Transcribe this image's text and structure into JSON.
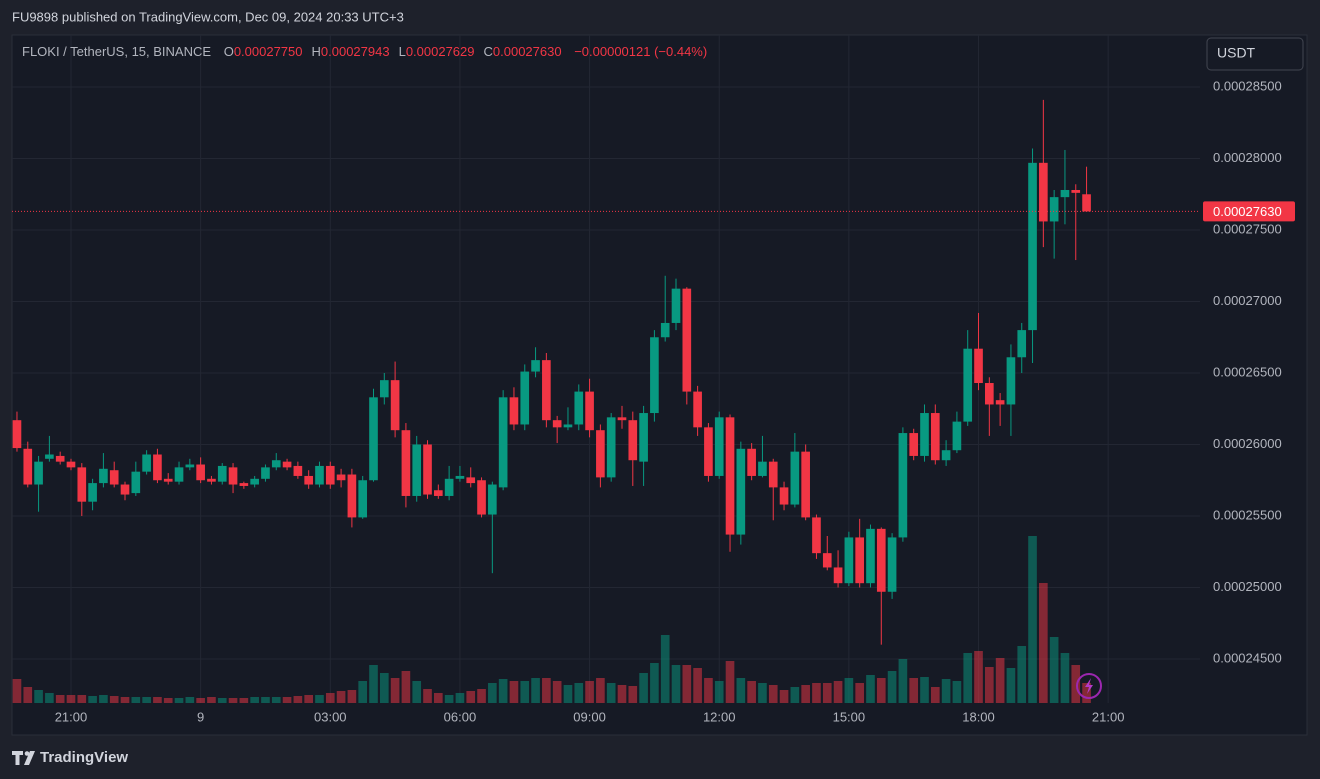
{
  "header": {
    "publisher": "FU9898 published on TradingView.com, Dec 09, 2024 20:33 UTC+3",
    "brand": "TradingView"
  },
  "chart_data": {
    "type": "candlestick",
    "symbol": "FLOKI / TetherUS, 15, BINANCE",
    "ohlc_legend": [
      {
        "label": "O",
        "value": "0.00027750"
      },
      {
        "label": "H",
        "value": "0.00027943"
      },
      {
        "label": "L",
        "value": "0.00027629"
      },
      {
        "label": "C",
        "value": "0.00027630"
      }
    ],
    "change": "−0.00000121 (−0.44%)",
    "currency": "USDT",
    "up_color": "#089981",
    "down_color": "#f23645",
    "grid": true,
    "last_price": {
      "value": 0.0002763,
      "label": "0.00027630"
    },
    "open": [
      0.0002617,
      0.0002597,
      0.0002572,
      0.000259,
      0.0002592,
      0.0002588,
      0.0002584,
      0.000256,
      0.0002573,
      0.0002582,
      0.0002572,
      0.0002566,
      0.0002581,
      0.0002593,
      0.0002576,
      0.0002574,
      0.0002584,
      0.0002586,
      0.0002576,
      0.0002574,
      0.0002584,
      0.0002573,
      0.0002572,
      0.0002576,
      0.0002584,
      0.0002588,
      0.0002585,
      0.0002578,
      0.0002572,
      0.0002585,
      0.0002579,
      0.0002579,
      0.0002549,
      0.0002575,
      0.0002633,
      0.0002645,
      0.000261,
      0.0002564,
      0.00026,
      0.0002568,
      0.0002564,
      0.0002576,
      0.0002577,
      0.0002575,
      0.0002551,
      0.000257,
      0.0002633,
      0.0002614,
      0.0002651,
      0.0002659,
      0.0002617,
      0.0002612,
      0.0002614,
      0.0002637,
      0.000261,
      0.0002577,
      0.0002619,
      0.0002617,
      0.0002588,
      0.0002622,
      0.0002675,
      0.0002685,
      0.0002709,
      0.0002637,
      0.0002612,
      0.0002578,
      0.0002619,
      0.0002537,
      0.0002597,
      0.0002578,
      0.0002588,
      0.000257,
      0.0002558,
      0.0002595,
      0.0002549,
      0.0002524,
      0.0002514,
      0.0002503,
      0.0002535,
      0.0002503,
      0.0002541,
      0.0002497,
      0.0002535,
      0.0002608,
      0.0002592,
      0.0002622,
      0.0002589,
      0.0002596,
      0.0002616,
      0.0002667,
      0.0002643,
      0.0002631,
      0.0002628,
      0.0002661,
      0.000268,
      0.0002797,
      0.0002756,
      0.0002773,
      0.0002778,
      0.0002775
    ],
    "high": [
      0.0002623,
      0.0002602,
      0.0002592,
      0.0002606,
      0.0002595,
      0.000259,
      0.0002587,
      0.0002576,
      0.0002594,
      0.0002588,
      0.0002574,
      0.0002588,
      0.0002596,
      0.0002597,
      0.000258,
      0.0002588,
      0.000259,
      0.0002591,
      0.0002578,
      0.0002587,
      0.0002587,
      0.0002574,
      0.0002578,
      0.0002586,
      0.0002594,
      0.000259,
      0.0002588,
      0.0002582,
      0.0002588,
      0.0002588,
      0.0002583,
      0.0002583,
      0.0002578,
      0.0002639,
      0.000265,
      0.0002658,
      0.0002615,
      0.0002606,
      0.0002603,
      0.0002572,
      0.0002585,
      0.0002585,
      0.0002584,
      0.0002577,
      0.0002574,
      0.0002638,
      0.000264,
      0.0002656,
      0.0002668,
      0.0002664,
      0.000262,
      0.0002626,
      0.0002642,
      0.0002646,
      0.0002614,
      0.0002622,
      0.0002627,
      0.0002623,
      0.0002627,
      0.000268,
      0.0002718,
      0.0002716,
      0.000271,
      0.0002641,
      0.0002615,
      0.0002623,
      0.0002621,
      0.0002602,
      0.0002601,
      0.0002606,
      0.000259,
      0.0002574,
      0.0002608,
      0.00026,
      0.0002551,
      0.0002536,
      0.0002526,
      0.0002539,
      0.0002548,
      0.0002544,
      0.0002542,
      0.0002538,
      0.0002612,
      0.0002611,
      0.0002628,
      0.0002628,
      0.0002603,
      0.0002623,
      0.000268,
      0.0002692,
      0.0002647,
      0.0002636,
      0.000267,
      0.0002685,
      0.0002807,
      0.0002841,
      0.0002778,
      0.0002806,
      0.0002782,
      0.00027943
    ],
    "low": [
      0.0002595,
      0.000257,
      0.0002553,
      0.0002588,
      0.0002586,
      0.0002582,
      0.000255,
      0.0002554,
      0.000257,
      0.000257,
      0.0002561,
      0.0002564,
      0.0002579,
      0.0002573,
      0.0002572,
      0.0002572,
      0.0002582,
      0.0002573,
      0.0002572,
      0.0002572,
      0.0002566,
      0.0002569,
      0.000257,
      0.0002574,
      0.0002582,
      0.0002582,
      0.0002576,
      0.0002569,
      0.000257,
      0.0002569,
      0.000257,
      0.0002542,
      0.0002548,
      0.0002574,
      0.0002628,
      0.0002605,
      0.0002556,
      0.000256,
      0.0002562,
      0.0002562,
      0.0002561,
      0.0002574,
      0.000257,
      0.0002549,
      0.000251,
      0.0002568,
      0.000261,
      0.000261,
      0.0002647,
      0.0002612,
      0.0002601,
      0.000261,
      0.000261,
      0.0002605,
      0.000257,
      0.0002574,
      0.0002611,
      0.0002571,
      0.0002571,
      0.0002616,
      0.0002672,
      0.000268,
      0.0002628,
      0.0002606,
      0.0002574,
      0.0002576,
      0.0002525,
      0.000253,
      0.0002575,
      0.0002577,
      0.0002547,
      0.0002554,
      0.0002556,
      0.0002547,
      0.000252,
      0.0002512,
      0.00025,
      0.0002501,
      0.00025,
      0.00025,
      0.000246,
      0.0002492,
      0.0002532,
      0.0002589,
      0.0002588,
      0.0002586,
      0.0002585,
      0.0002594,
      0.0002613,
      0.0002638,
      0.0002606,
      0.0002613,
      0.0002606,
      0.000265,
      0.0002657,
      0.0002738,
      0.000273,
      0.0002754,
      0.0002729,
      0.00027629
    ],
    "close": [
      0.00025975,
      0.0002572,
      0.0002588,
      0.0002593,
      0.0002588,
      0.0002584,
      0.000256,
      0.0002573,
      0.0002583,
      0.0002572,
      0.0002565,
      0.0002581,
      0.0002593,
      0.0002575,
      0.0002574,
      0.0002584,
      0.0002586,
      0.0002575,
      0.0002574,
      0.0002585,
      0.0002572,
      0.0002571,
      0.0002576,
      0.0002584,
      0.0002589,
      0.0002584,
      0.0002578,
      0.0002572,
      0.0002585,
      0.0002572,
      0.0002575,
      0.0002549,
      0.0002575,
      0.0002633,
      0.0002645,
      0.000261,
      0.0002564,
      0.00026,
      0.0002565,
      0.0002564,
      0.0002576,
      0.0002578,
      0.0002573,
      0.0002551,
      0.0002572,
      0.0002633,
      0.0002614,
      0.0002651,
      0.0002659,
      0.0002617,
      0.0002612,
      0.0002614,
      0.0002637,
      0.000261,
      0.0002577,
      0.0002619,
      0.0002617,
      0.0002589,
      0.0002622,
      0.0002675,
      0.0002685,
      0.0002709,
      0.0002637,
      0.0002612,
      0.0002578,
      0.0002619,
      0.0002537,
      0.0002597,
      0.0002578,
      0.0002588,
      0.000257,
      0.0002558,
      0.0002595,
      0.0002549,
      0.0002524,
      0.0002514,
      0.0002503,
      0.0002535,
      0.0002503,
      0.0002541,
      0.0002497,
      0.0002535,
      0.0002608,
      0.0002592,
      0.0002622,
      0.0002589,
      0.0002596,
      0.0002616,
      0.0002667,
      0.0002643,
      0.0002628,
      0.0002628,
      0.0002661,
      0.000268,
      0.0002797,
      0.0002756,
      0.0002773,
      0.0002778,
      0.0002776,
      0.0002763
    ],
    "volume": [
      24,
      16,
      13,
      10,
      8,
      8,
      8,
      7,
      8,
      7,
      6,
      6,
      6,
      6,
      5,
      5,
      6,
      5,
      6,
      5,
      5,
      5,
      6,
      6,
      6,
      6,
      7,
      8,
      8,
      10,
      12,
      13,
      22,
      38,
      30,
      25,
      32,
      22,
      14,
      10,
      8,
      10,
      12,
      14,
      20,
      24,
      22,
      22,
      25,
      25,
      22,
      18,
      20,
      22,
      25,
      20,
      18,
      17,
      30,
      40,
      68,
      38,
      38,
      35,
      25,
      22,
      42,
      25,
      22,
      20,
      18,
      13,
      16,
      18,
      20,
      20,
      22,
      25,
      20,
      28,
      25,
      32,
      44,
      25,
      26,
      16,
      24,
      22,
      50,
      52,
      36,
      45,
      35,
      57,
      167,
      120,
      66,
      50,
      38,
      20
    ],
    "volume_lim": [
      0,
      235
    ],
    "xlim": [
      -0.46,
      109.5
    ],
    "xticks": [
      {
        "value": 5,
        "label": "21:00"
      },
      {
        "value": 17,
        "label": "9"
      },
      {
        "value": 29,
        "label": "03:00"
      },
      {
        "value": 41,
        "label": "06:00"
      },
      {
        "value": 53,
        "label": "09:00"
      },
      {
        "value": 65,
        "label": "12:00"
      },
      {
        "value": 77,
        "label": "15:00"
      },
      {
        "value": 89,
        "label": "18:00"
      },
      {
        "value": 101,
        "label": "21:00"
      }
    ],
    "ylim": [
      0.00024192,
      0.00028864
    ],
    "yticks": [
      {
        "value": 0.000245,
        "label": "0.00024500"
      },
      {
        "value": 0.00025,
        "label": "0.00025000"
      },
      {
        "value": 0.000255,
        "label": "0.00025500"
      },
      {
        "value": 0.00026,
        "label": "0.00026000"
      },
      {
        "value": 0.000265,
        "label": "0.00026500"
      },
      {
        "value": 0.00027,
        "label": "0.00027000"
      },
      {
        "value": 0.000275,
        "label": "0.00027500"
      },
      {
        "value": 0.00028,
        "label": "0.00028000"
      },
      {
        "value": 0.000285,
        "label": "0.00028500"
      }
    ]
  }
}
